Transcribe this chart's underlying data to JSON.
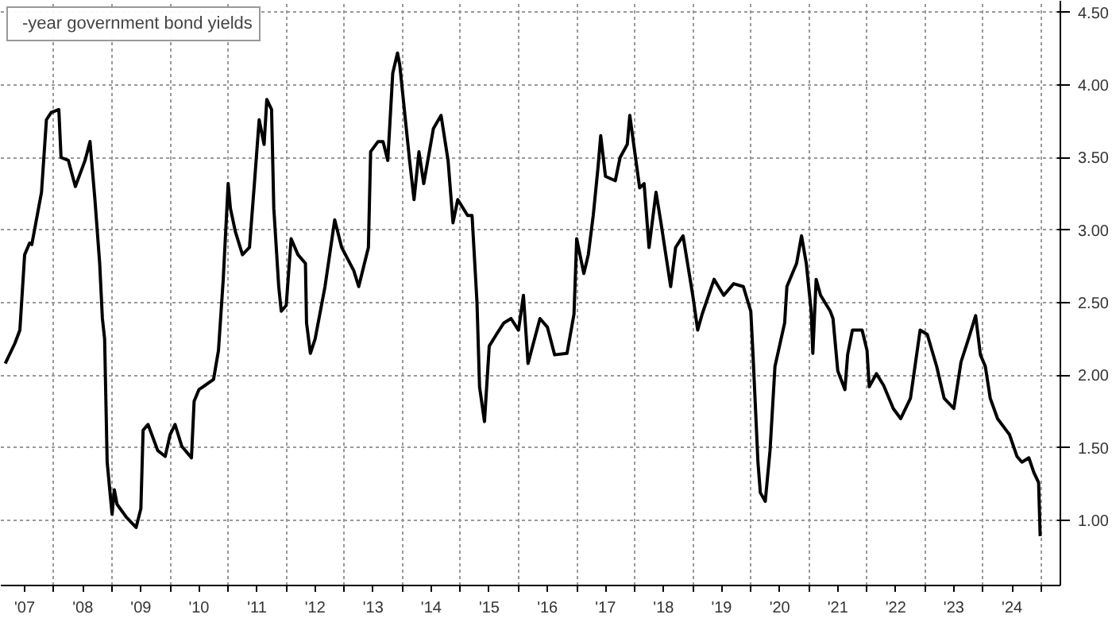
{
  "chart_data": {
    "type": "line",
    "x": [
      "2007-03-01",
      "2007-05-01",
      "2007-06-01",
      "2007-07-01",
      "2007-08-01",
      "2007-08-15",
      "2007-10-15",
      "2007-11-15",
      "2007-12-15",
      "2008-02-01",
      "2008-02-15",
      "2008-04-01",
      "2008-05-15",
      "2008-07-15",
      "2008-08-15",
      "2008-09-15",
      "2008-10-15",
      "2008-11-01",
      "2008-11-15",
      "2008-12-01",
      "2009-01-01",
      "2009-01-15",
      "2009-02-01",
      "2009-04-01",
      "2009-06-01",
      "2009-07-01",
      "2009-07-15",
      "2009-08-15",
      "2009-10-15",
      "2009-12-01",
      "2010-01-01",
      "2010-02-01",
      "2010-03-15",
      "2010-05-15",
      "2010-06-01",
      "2010-07-01",
      "2010-10-01",
      "2010-11-01",
      "2010-12-01",
      "2011-01-01",
      "2011-01-15",
      "2011-02-15",
      "2011-04-01",
      "2011-05-15",
      "2011-06-15",
      "2011-07-15",
      "2011-08-15",
      "2011-09-01",
      "2011-10-01",
      "2011-10-15",
      "2011-11-15",
      "2011-12-01",
      "2012-01-01",
      "2012-02-01",
      "2012-03-15",
      "2012-05-01",
      "2012-05-08",
      "2012-06-01",
      "2012-07-01",
      "2012-09-01",
      "2012-10-15",
      "2012-11-01",
      "2012-12-15",
      "2013-03-01",
      "2013-04-01",
      "2013-06-01",
      "2013-06-15",
      "2013-08-01",
      "2013-09-01",
      "2013-10-01",
      "2013-11-01",
      "2013-12-01",
      "2013-12-15",
      "2014-02-15",
      "2014-03-15",
      "2014-04-15",
      "2014-05-15",
      "2014-07-15",
      "2014-09-01",
      "2014-10-15",
      "2014-11-15",
      "2014-12-15",
      "2015-02-15",
      "2015-03-15",
      "2015-04-15",
      "2015-05-01",
      "2015-06-01",
      "2015-07-01",
      "2015-08-15",
      "2015-10-01",
      "2015-11-15",
      "2016-01-01",
      "2016-02-01",
      "2016-03-01",
      "2016-05-15",
      "2016-07-01",
      "2016-08-15",
      "2016-11-01",
      "2016-12-15",
      "2017-01-01",
      "2017-02-15",
      "2017-03-15",
      "2017-04-15",
      "2017-05-15",
      "2017-06-01",
      "2017-07-01",
      "2017-09-01",
      "2017-10-01",
      "2017-11-15",
      "2017-12-01",
      "2018-01-01",
      "2018-02-01",
      "2018-03-01",
      "2018-04-01",
      "2018-05-15",
      "2018-06-15",
      "2018-08-15",
      "2018-09-15",
      "2018-11-01",
      "2019-01-01",
      "2019-02-01",
      "2019-03-01",
      "2019-05-15",
      "2019-07-15",
      "2019-09-15",
      "2019-11-15",
      "2020-01-01",
      "2020-01-15",
      "2020-02-15",
      "2020-03-01",
      "2020-04-01",
      "2020-05-01",
      "2020-06-01",
      "2020-08-01",
      "2020-08-15",
      "2020-10-15",
      "2020-11-15",
      "2020-12-15",
      "2021-01-15",
      "2021-01-25",
      "2021-02-15",
      "2021-03-15",
      "2021-05-15",
      "2021-06-01",
      "2021-07-01",
      "2021-08-15",
      "2021-09-01",
      "2021-10-01",
      "2021-12-01",
      "2022-01-01",
      "2022-01-15",
      "2022-03-01",
      "2022-04-15",
      "2022-06-15",
      "2022-08-01",
      "2022-10-01",
      "2022-12-01",
      "2023-01-15",
      "2023-03-15",
      "2023-05-01",
      "2023-07-01",
      "2023-08-15",
      "2023-10-01",
      "2023-11-15",
      "2023-12-15",
      "2024-01-15",
      "2024-02-15",
      "2024-04-01",
      "2024-06-15",
      "2024-08-01",
      "2024-09-01",
      "2024-10-15",
      "2024-11-15",
      "2024-12-15",
      "2024-12-25"
    ],
    "series": [
      {
        "name": "-year government bond yields",
        "color": "#000000",
        "values": [
          2.08,
          2.22,
          2.31,
          2.83,
          2.91,
          2.9,
          3.26,
          3.76,
          3.81,
          3.83,
          3.5,
          3.48,
          3.3,
          3.48,
          3.61,
          3.21,
          2.77,
          2.39,
          2.25,
          1.4,
          1.04,
          1.21,
          1.11,
          1.02,
          0.95,
          1.08,
          1.62,
          1.66,
          1.48,
          1.44,
          1.59,
          1.66,
          1.51,
          1.43,
          1.82,
          1.9,
          1.97,
          2.17,
          2.66,
          3.32,
          3.15,
          2.99,
          2.83,
          2.88,
          3.32,
          3.76,
          3.59,
          3.9,
          3.83,
          3.15,
          2.61,
          2.44,
          2.48,
          2.94,
          2.83,
          2.77,
          2.36,
          2.15,
          2.25,
          2.61,
          2.94,
          3.07,
          2.88,
          2.72,
          2.61,
          2.88,
          3.54,
          3.61,
          3.61,
          3.48,
          4.08,
          4.22,
          4.14,
          3.48,
          3.21,
          3.54,
          3.32,
          3.7,
          3.79,
          3.48,
          3.05,
          3.21,
          3.1,
          3.1,
          2.5,
          1.92,
          1.68,
          2.2,
          2.28,
          2.36,
          2.39,
          2.31,
          2.55,
          2.08,
          2.39,
          2.33,
          2.14,
          2.15,
          2.42,
          2.94,
          2.7,
          2.83,
          3.1,
          3.43,
          3.65,
          3.37,
          3.34,
          3.5,
          3.59,
          3.79,
          3.54,
          3.29,
          3.32,
          2.88,
          3.26,
          3.05,
          2.61,
          2.88,
          2.96,
          2.55,
          2.31,
          2.42,
          2.66,
          2.55,
          2.63,
          2.61,
          2.44,
          2.14,
          1.4,
          1.19,
          1.13,
          1.48,
          2.06,
          2.36,
          2.61,
          2.77,
          2.96,
          2.77,
          2.44,
          2.15,
          2.66,
          2.55,
          2.44,
          2.39,
          2.03,
          1.9,
          2.14,
          2.31,
          2.31,
          2.17,
          1.92,
          2.01,
          1.93,
          1.77,
          1.7,
          1.84,
          2.31,
          2.28,
          2.06,
          1.84,
          1.77,
          2.09,
          2.25,
          2.41,
          2.14,
          2.06,
          1.84,
          1.7,
          1.59,
          1.44,
          1.4,
          1.43,
          1.33,
          1.26,
          0.89
        ]
      }
    ],
    "xlim": [
      "2007-02-01",
      "2025-05-01"
    ],
    "xticks": [
      {
        "value": "2008",
        "label": null
      },
      {
        "value": "2009",
        "label": null
      },
      {
        "value": "2010",
        "label": null
      },
      {
        "value": "2011",
        "label": null
      },
      {
        "value": "2012",
        "label": null
      },
      {
        "value": "2013",
        "label": null
      },
      {
        "value": "2014",
        "label": null
      },
      {
        "value": "2015",
        "label": null
      },
      {
        "value": "2016",
        "label": null
      },
      {
        "value": "2017",
        "label": null
      },
      {
        "value": "2018",
        "label": null
      },
      {
        "value": "2019",
        "label": null
      },
      {
        "value": "2020",
        "label": null
      },
      {
        "value": "2021",
        "label": null
      },
      {
        "value": "2022",
        "label": null
      },
      {
        "value": "2023",
        "label": null
      },
      {
        "value": "2024",
        "label": null
      },
      {
        "value": "2025",
        "label": null
      },
      {
        "value": "2007-07",
        "label": "'07"
      },
      {
        "value": "2008-07",
        "label": "'08"
      },
      {
        "value": "2009-07",
        "label": "'09"
      },
      {
        "value": "2010-07",
        "label": "'10"
      },
      {
        "value": "2011-07",
        "label": "'11"
      },
      {
        "value": "2012-07",
        "label": "'12"
      },
      {
        "value": "2013-07",
        "label": "'13"
      },
      {
        "value": "2014-07",
        "label": "'14"
      },
      {
        "value": "2015-07",
        "label": "'15"
      },
      {
        "value": "2016-07",
        "label": "'16"
      },
      {
        "value": "2017-07",
        "label": "'17"
      },
      {
        "value": "2018-07",
        "label": "'18"
      },
      {
        "value": "2019-07",
        "label": "'19"
      },
      {
        "value": "2020-07",
        "label": "'20"
      },
      {
        "value": "2021-07",
        "label": "'21"
      },
      {
        "value": "2022-07",
        "label": "'22"
      },
      {
        "value": "2023-07",
        "label": "'23"
      },
      {
        "value": "2024-07",
        "label": "'24"
      }
    ],
    "ylim": [
      0.55,
      4.58
    ],
    "yticks": [
      {
        "value": 1,
        "label": "1.00"
      },
      {
        "value": 1.5,
        "label": "1.50"
      },
      {
        "value": 2,
        "label": "2.00"
      },
      {
        "value": 2.5,
        "label": "2.50"
      },
      {
        "value": 3,
        "label": "3.00"
      },
      {
        "value": 3.5,
        "label": "3.50"
      },
      {
        "value": 4,
        "label": "4.00"
      },
      {
        "value": 4.5,
        "label": "4.50"
      }
    ],
    "grid": true,
    "legend": "top left"
  }
}
